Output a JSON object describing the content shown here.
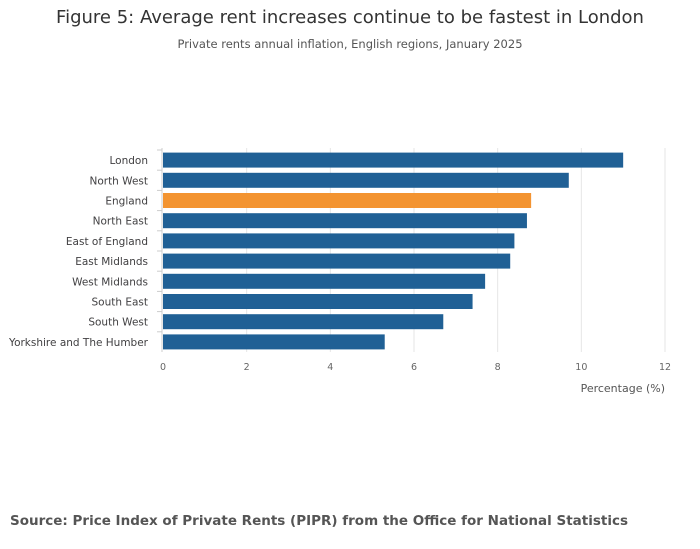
{
  "title": "Figure 5: Average rent increases continue to be fastest in London",
  "subtitle": "Private rents annual inflation, English regions, January 2025",
  "source": "Source: Price Index of Private Rents (PIPR) from the Office for National Statistics",
  "colors": {
    "bar": "#206095",
    "highlight": "#F39431",
    "grid": "#e6e6e6"
  },
  "chart_data": {
    "type": "bar",
    "orientation": "horizontal",
    "categories": [
      "London",
      "North West",
      "England",
      "North East",
      "East of England",
      "East Midlands",
      "West Midlands",
      "South East",
      "South West",
      "Yorkshire and The Humber"
    ],
    "values": [
      11.0,
      9.7,
      8.8,
      8.7,
      8.4,
      8.3,
      7.7,
      7.4,
      6.7,
      5.3
    ],
    "highlight_category": "England",
    "xlabel": "Percentage (%)",
    "xlim": [
      0,
      12
    ],
    "xticks": [
      "0",
      "2",
      "4",
      "6",
      "8",
      "10",
      "12"
    ],
    "grid": true,
    "legend": "none"
  }
}
